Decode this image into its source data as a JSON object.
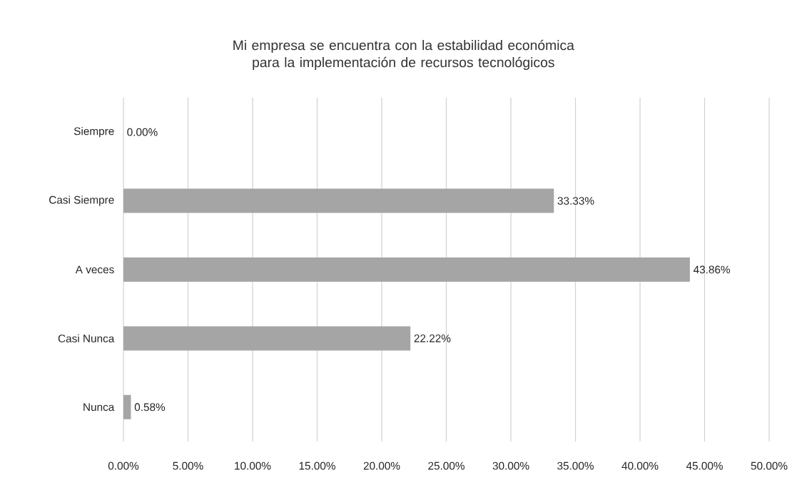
{
  "chart_data": {
    "type": "bar",
    "orientation": "horizontal",
    "title": "Mi empresa se encuentra con la estabilidad económica para la implementación de recursos tecnológicos",
    "categories": [
      "Siempre",
      "Casi Siempre",
      "A veces",
      "Casi Nunca",
      "Nunca"
    ],
    "values": [
      0,
      33.33,
      43.86,
      22.22,
      0.58
    ],
    "value_labels": [
      "0.00%",
      "33.33%",
      "43.86%",
      "22.22%",
      "0.58%"
    ],
    "color": "#a5a5a5",
    "xlim": [
      0,
      50
    ],
    "xticks": [
      {
        "value": 0,
        "label": "0.00%"
      },
      {
        "value": 5,
        "label": "5.00%"
      },
      {
        "value": 10,
        "label": "10.00%"
      },
      {
        "value": 15,
        "label": "15.00%"
      },
      {
        "value": 20,
        "label": "20.00%"
      },
      {
        "value": 25,
        "label": "25.00%"
      },
      {
        "value": 30,
        "label": "30.00%"
      },
      {
        "value": 35,
        "label": "35.00%"
      },
      {
        "value": 40,
        "label": "40.00%"
      },
      {
        "value": 45,
        "label": "45.00%"
      },
      {
        "value": 50,
        "label": "50.00%"
      }
    ],
    "grid": "x"
  }
}
